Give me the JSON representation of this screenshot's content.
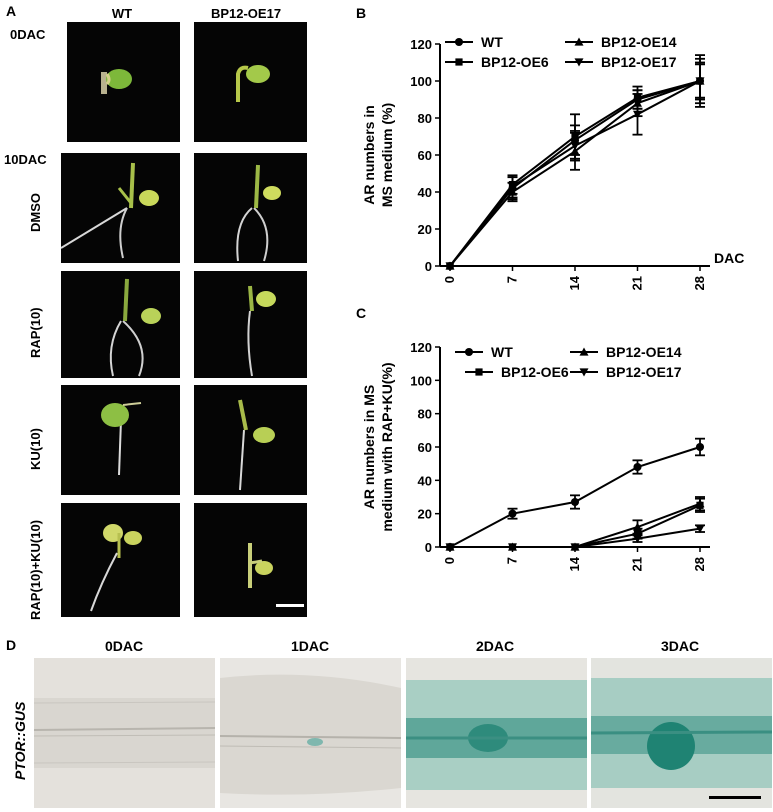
{
  "panel_a": {
    "letter": "A",
    "col_headers": [
      "WT",
      "BP12-OE17"
    ],
    "label_0dac": "0DAC",
    "label_10dac": "10DAC",
    "row_labels": [
      "DMSO",
      "RAP(10)",
      "KU(10)",
      "RAP(10)+KU(10)"
    ]
  },
  "panel_b": {
    "letter": "B"
  },
  "panel_c": {
    "letter": "C"
  },
  "panel_d": {
    "letter": "D",
    "side_label": "PTOR::GUS",
    "timepoints": [
      "0DAC",
      "1DAC",
      "2DAC",
      "3DAC"
    ]
  },
  "chart_data": [
    {
      "type": "line",
      "ylabel": "AR numbers in MS medium (%)",
      "xlabel": "DAC",
      "x": [
        0,
        7,
        14,
        21,
        28
      ],
      "xticks": [
        "0",
        "7",
        "14",
        "21",
        "28"
      ],
      "ylim": [
        0,
        120
      ],
      "yticks": [
        0,
        20,
        40,
        60,
        80,
        100,
        120
      ],
      "legend": [
        "WT",
        "BP12-OE6",
        "BP12-OE14",
        "BP12-OE17"
      ],
      "series": [
        {
          "name": "WT",
          "marker": "circle",
          "values": [
            0,
            42,
            68,
            90,
            100
          ],
          "err": [
            0,
            6,
            8,
            5,
            9
          ]
        },
        {
          "name": "BP12-OE6",
          "marker": "square",
          "values": [
            0,
            44,
            70,
            91,
            100
          ],
          "err": [
            0,
            5,
            12,
            6,
            14
          ]
        },
        {
          "name": "BP12-OE14",
          "marker": "triangle-up",
          "values": [
            0,
            40,
            62,
            88,
            100
          ],
          "err": [
            0,
            5,
            10,
            7,
            10
          ]
        },
        {
          "name": "BP12-OE17",
          "marker": "triangle-down",
          "values": [
            0,
            43,
            65,
            82,
            100
          ],
          "err": [
            0,
            6,
            8,
            11,
            12
          ]
        }
      ]
    },
    {
      "type": "line",
      "ylabel": "AR numbers in MS medium with RAP+KU(%)",
      "xlabel": "",
      "x": [
        0,
        7,
        14,
        21,
        28
      ],
      "xticks": [
        "0",
        "7",
        "14",
        "21",
        "28"
      ],
      "ylim": [
        0,
        120
      ],
      "yticks": [
        0,
        20,
        40,
        60,
        80,
        100,
        120
      ],
      "legend": [
        "WT",
        "BP12-OE6",
        "BP12-OE14",
        "BP12-OE17"
      ],
      "series": [
        {
          "name": "WT",
          "marker": "circle",
          "values": [
            0,
            20,
            27,
            48,
            60
          ],
          "err": [
            0,
            3,
            4,
            4,
            5
          ]
        },
        {
          "name": "BP12-OE6",
          "marker": "square",
          "values": [
            0,
            0,
            0,
            8,
            25
          ],
          "err": [
            0,
            0,
            0,
            3,
            4
          ]
        },
        {
          "name": "BP12-OE14",
          "marker": "triangle-up",
          "values": [
            0,
            0,
            0,
            12,
            26
          ],
          "err": [
            0,
            0,
            0,
            4,
            4
          ]
        },
        {
          "name": "BP12-OE17",
          "marker": "triangle-down",
          "values": [
            0,
            0,
            0,
            5,
            11
          ],
          "err": [
            0,
            0,
            0,
            2,
            2
          ]
        }
      ]
    }
  ]
}
